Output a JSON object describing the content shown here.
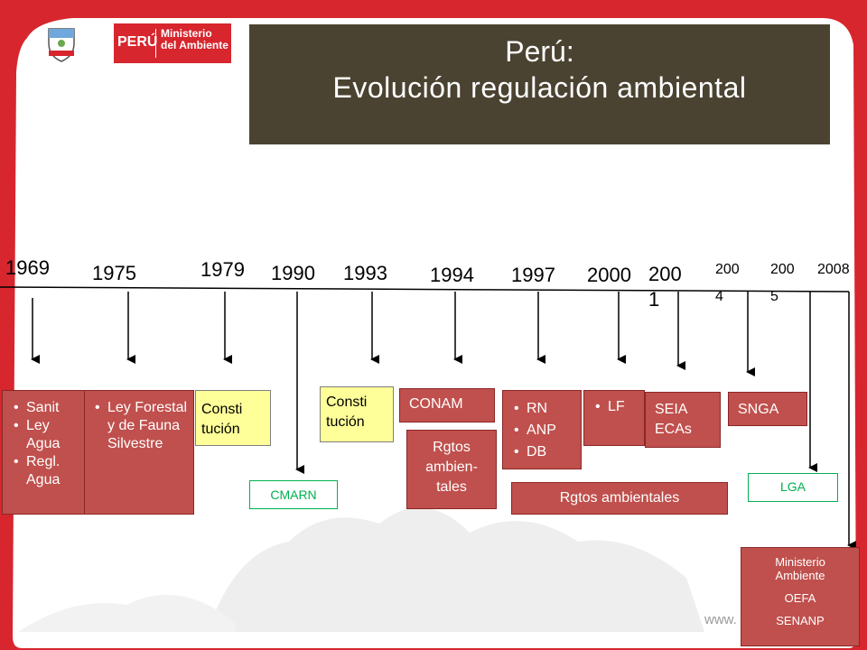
{
  "header": {
    "logo_country": "PERÚ",
    "logo_ministry": [
      "Ministerio",
      "del Ambiente"
    ]
  },
  "title": {
    "line1": "Perú:",
    "line2": "Evolución regulación ambiental"
  },
  "timeline": {
    "years": [
      "1969",
      "1975",
      "1979",
      "1990",
      "1993",
      "1994",
      "1997",
      "2000",
      "200\n1",
      "200\n4",
      "200\n5",
      "2008"
    ]
  },
  "boxes": {
    "b1969": [
      "Sanit",
      "Ley Agua",
      "Regl. Agua"
    ],
    "b1975": [
      "Ley Forestal y de Fauna Silvestre"
    ],
    "b1979": "Consti tución",
    "b1990": "CMARN",
    "b1993": "Consti tución",
    "b1994_a": "CONAM",
    "b1994_b": "Rgtos ambien-tales",
    "b1997": [
      "RN",
      "ANP",
      "DB"
    ],
    "b1997_rgtos": "Rgtos ambientales",
    "b2000": [
      "LF"
    ],
    "b2001": "SEIA ECAs",
    "b2004": "SNGA",
    "b2005": "LGA",
    "b2008": [
      "Ministerio Ambiente",
      "OEFA",
      "SENANP"
    ]
  },
  "footer": {
    "www": "www."
  },
  "colors": {
    "accent_red": "#c0504d",
    "title_bg": "#4b4331",
    "frame_red": "#d7262e",
    "highlight_yellow": "#ffff99",
    "green": "#00b050"
  }
}
